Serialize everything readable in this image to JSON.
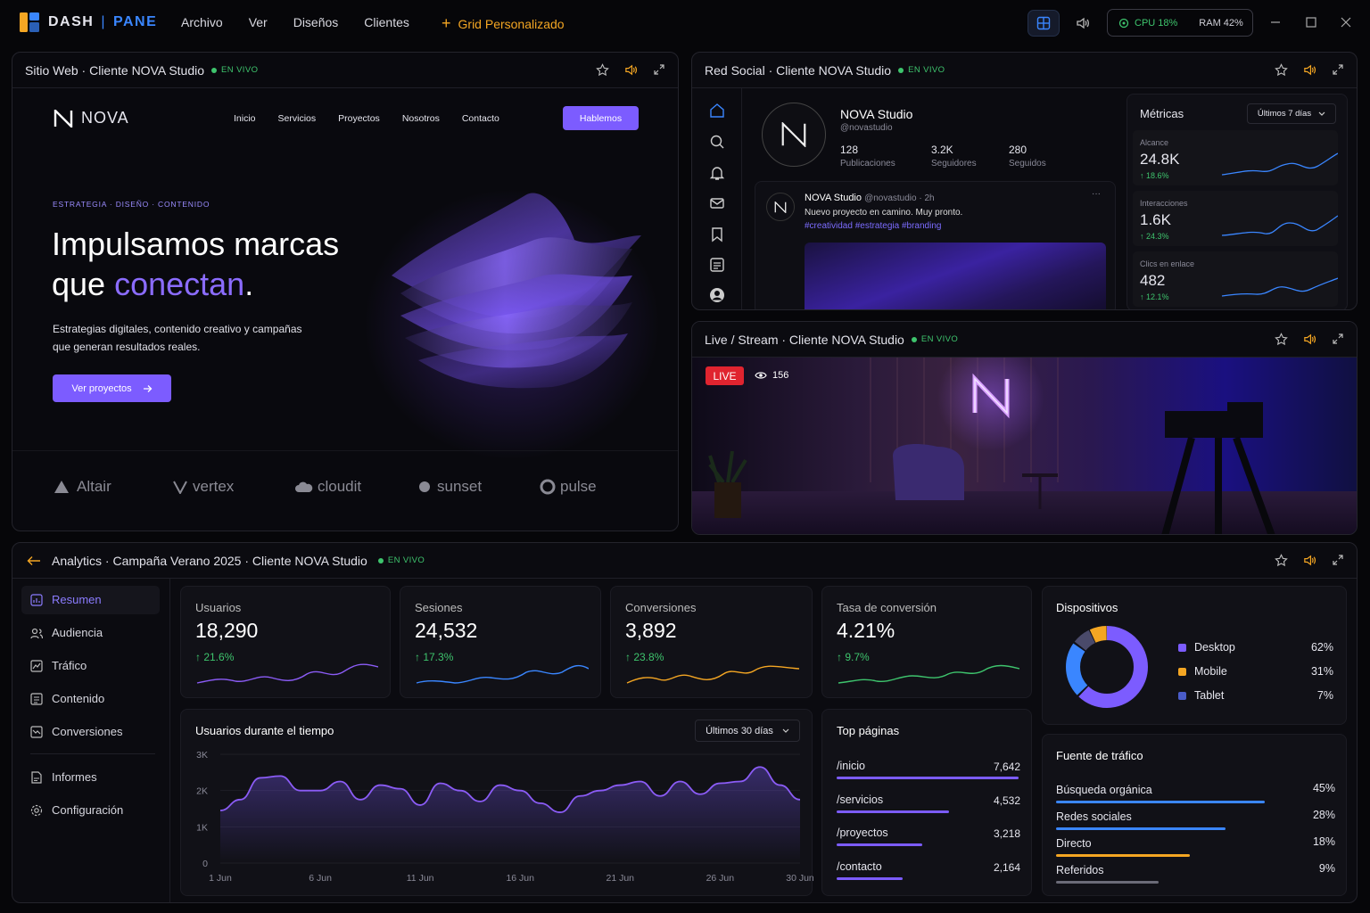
{
  "app": {
    "brand_left": "DASH",
    "brand_sep": "|",
    "brand_right": "PANE",
    "menu": [
      "Archivo",
      "Ver",
      "Diseños",
      "Clientes"
    ],
    "grid_link": "Grid Personalizado",
    "cpu": "CPU 18%",
    "ram": "RAM 42%"
  },
  "colors": {
    "accent": "#7c5cff",
    "orange": "#f4a623",
    "green": "#3ec46d",
    "blue": "#3a86ff",
    "live": "#e0242f"
  },
  "live_label": "EN VIVO",
  "web": {
    "title": "Sitio Web · Cliente NOVA Studio",
    "logo": "NOVA",
    "nav": [
      "Inicio",
      "Servicios",
      "Proyectos",
      "Nosotros",
      "Contacto"
    ],
    "cta": "Hablemos",
    "eyebrow": "ESTRATEGIA · DISEÑO · CONTENIDO",
    "headline1": "Impulsamos marcas",
    "headline2a": "que",
    "headline2b": "conectan",
    "headline2c": ".",
    "body1": "Estrategias digitales, contenido creativo y campañas",
    "body2": "que generan resultados reales.",
    "button": "Ver proyectos",
    "brands": [
      "Altair",
      "vertex",
      "cloudit",
      "sunset",
      "pulse"
    ]
  },
  "social": {
    "title": "Red Social · Cliente NOVA Studio",
    "name": "NOVA Studio",
    "handle": "@novastudio",
    "stats": [
      {
        "v": "128",
        "l": "Publicaciones"
      },
      {
        "v": "3.2K",
        "l": "Seguidores"
      },
      {
        "v": "280",
        "l": "Seguidos"
      }
    ],
    "post_name": "NOVA Studio",
    "post_meta": "@novastudio · 2h",
    "post_text": "Nuevo proyecto en camino. Muy pronto.",
    "post_tags": "#creatividad #estrategia #branding",
    "post_more": "···",
    "metrics_title": "Métricas",
    "metrics_range": "Últimos 7 días",
    "metrics": [
      {
        "l": "Alcance",
        "v": "24.8K",
        "c": "↑ 18.6%"
      },
      {
        "l": "Interacciones",
        "v": "1.6K",
        "c": "↑ 24.3%"
      },
      {
        "l": "Clics en enlace",
        "v": "482",
        "c": "↑ 12.1%"
      }
    ]
  },
  "stream": {
    "title": "Live / Stream · Cliente NOVA Studio",
    "live": "LIVE",
    "viewers": "156"
  },
  "analytics": {
    "title": "Analytics · Campaña Verano 2025 · Cliente NOVA Studio",
    "nav": [
      "Resumen",
      "Audiencia",
      "Tráfico",
      "Contenido",
      "Conversiones",
      "Informes",
      "Configuración"
    ],
    "kpis": [
      {
        "l": "Usuarios",
        "v": "18,290",
        "c": "↑ 21.6%"
      },
      {
        "l": "Sesiones",
        "v": "24,532",
        "c": "↑ 17.3%"
      },
      {
        "l": "Conversiones",
        "v": "3,892",
        "c": "↑ 23.8%"
      },
      {
        "l": "Tasa de conversión",
        "v": "4.21%",
        "c": "↑ 9.7%"
      }
    ],
    "devices_title": "Dispositivos",
    "devices": [
      {
        "n": "Desktop",
        "p": "62%",
        "color": "#7c5cff"
      },
      {
        "n": "Mobile",
        "p": "31%",
        "color": "#f4a623"
      },
      {
        "n": "Tablet",
        "p": "7%",
        "color": "#4a5cc9"
      }
    ],
    "chart_title": "Usuarios durante el tiempo",
    "chart_range": "Últimos 30 días",
    "top_title": "Top páginas",
    "top": [
      {
        "p": "/inicio",
        "v": "7,642"
      },
      {
        "p": "/servicios",
        "v": "4,532"
      },
      {
        "p": "/proyectos",
        "v": "3,218"
      },
      {
        "p": "/contacto",
        "v": "2,164"
      }
    ],
    "source_title": "Fuente de tráfico",
    "sources": [
      {
        "n": "Búsqueda orgánica",
        "p": "45%",
        "color": "#3a86ff"
      },
      {
        "n": "Redes sociales",
        "p": "28%",
        "color": "#3a86ff"
      },
      {
        "n": "Directo",
        "p": "18%",
        "color": "#f4a623"
      },
      {
        "n": "Referidos",
        "p": "9%",
        "color": "#6b6b78"
      }
    ]
  },
  "chart_data": {
    "type": "area",
    "title": "Usuarios durante el tiempo",
    "xlabel": "",
    "ylabel": "",
    "x_ticks": [
      "1 Jun",
      "6 Jun",
      "11 Jun",
      "16 Jun",
      "21 Jun",
      "26 Jun",
      "30 Jun"
    ],
    "y_ticks": [
      "0",
      "1K",
      "2K",
      "3K"
    ],
    "ylim": [
      0,
      3000
    ],
    "series": [
      {
        "values": [
          1450,
          1750,
          2350,
          2400,
          2000,
          2000,
          2250,
          1750,
          2150,
          2050,
          1600,
          2200,
          2000,
          1700,
          2150,
          2000,
          1650,
          1400,
          1850,
          2000,
          2150,
          2250,
          1850,
          2250,
          1900,
          2200,
          2250,
          2650,
          2150,
          1750
        ]
      }
    ]
  }
}
